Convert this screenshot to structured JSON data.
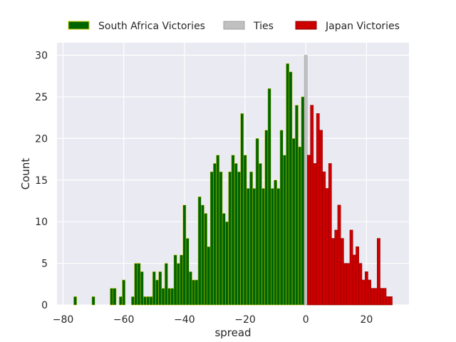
{
  "chart_data": {
    "type": "bar",
    "chart_kind": "histogram",
    "title": "",
    "xlabel": "spread",
    "ylabel": "Count",
    "xlim": [
      -82,
      34
    ],
    "ylim": [
      0,
      31.5
    ],
    "xticks": [
      -80,
      -60,
      -40,
      -20,
      0,
      20
    ],
    "yticks": [
      0,
      5,
      10,
      15,
      20,
      25,
      30
    ],
    "grid": true,
    "legend_position": "top-center",
    "background": "#eaeaf2",
    "series": [
      {
        "name": "South Africa Victories",
        "color": "#006400",
        "edge_color": "#cccc00",
        "x": [
          -76,
          -70,
          -64,
          -63,
          -61,
          -60,
          -57,
          -56,
          -55,
          -54,
          -53,
          -52,
          -51,
          -50,
          -49,
          -48,
          -47,
          -46,
          -45,
          -44,
          -43,
          -42,
          -41,
          -40,
          -39,
          -38,
          -37,
          -36,
          -35,
          -34,
          -33,
          -32,
          -31,
          -30,
          -29,
          -28,
          -27,
          -26,
          -25,
          -24,
          -23,
          -22,
          -21,
          -20,
          -19,
          -18,
          -17,
          -16,
          -15,
          -14,
          -13,
          -12,
          -11,
          -10,
          -9,
          -8,
          -7,
          -6,
          -5,
          -4,
          -3,
          -2,
          -1
        ],
        "values": [
          1,
          1,
          2,
          2,
          1,
          3,
          1,
          5,
          5,
          4,
          1,
          1,
          1,
          4,
          3,
          4,
          2,
          5,
          2,
          2,
          6,
          5,
          6,
          12,
          8,
          4,
          3,
          3,
          13,
          12,
          11,
          7,
          16,
          17,
          18,
          16,
          11,
          10,
          16,
          18,
          17,
          16,
          23,
          18,
          14,
          16,
          14,
          20,
          17,
          14,
          21,
          26,
          14,
          15,
          14,
          21,
          18,
          29,
          28,
          20,
          24,
          19,
          25
        ]
      },
      {
        "name": "Ties",
        "color": "#c0c0c0",
        "edge_color": "#a0a0a0",
        "x": [
          0
        ],
        "values": [
          30
        ]
      },
      {
        "name": "Japan Victories",
        "color": "#cc0000",
        "edge_color": "#880000",
        "x": [
          1,
          2,
          3,
          4,
          5,
          6,
          7,
          8,
          9,
          10,
          11,
          12,
          13,
          14,
          15,
          16,
          17,
          18,
          19,
          20,
          21,
          22,
          23,
          24,
          25,
          26,
          27,
          28
        ],
        "values": [
          18,
          24,
          17,
          23,
          21,
          16,
          14,
          17,
          8,
          9,
          12,
          8,
          5,
          5,
          9,
          6,
          7,
          5,
          3,
          4,
          3,
          2,
          2,
          8,
          2,
          2,
          1,
          1
        ]
      }
    ]
  }
}
